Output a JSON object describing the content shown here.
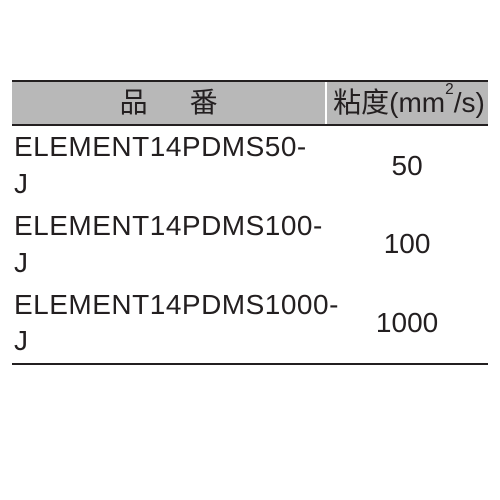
{
  "table": {
    "header_bg": "#b8b8b8",
    "border_color": "#231f20",
    "text_color": "#231f20",
    "columns": {
      "part_header": "品番",
      "visc_header_prefix": "粘度(mm",
      "visc_header_sup": "2",
      "visc_header_suffix": "/s)"
    },
    "rows": [
      {
        "part": "ELEMENT14PDMS50-J",
        "visc": "50"
      },
      {
        "part": "ELEMENT14PDMS100-J",
        "visc": "100"
      },
      {
        "part": "ELEMENT14PDMS1000-J",
        "visc": "1000"
      }
    ]
  }
}
